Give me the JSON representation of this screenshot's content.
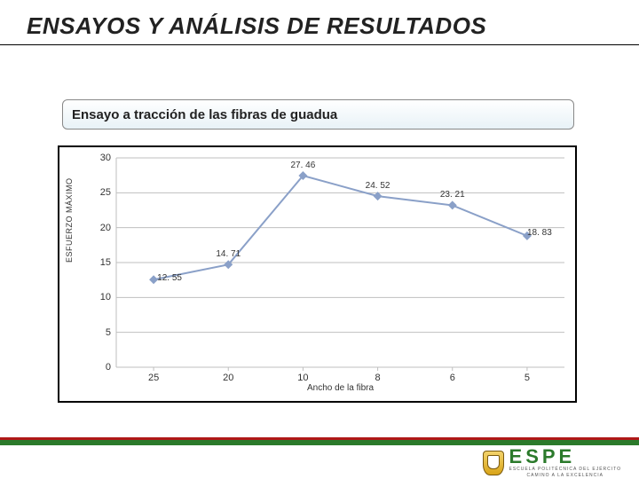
{
  "title": "ENSAYOS Y ANÁLISIS DE RESULTADOS",
  "subtitle": "Ensayo a tracción de las fibras de guadua",
  "chart": {
    "type": "line",
    "x_categories": [
      "25",
      "20",
      "10",
      "8",
      "6",
      "5"
    ],
    "y_values": [
      12.55,
      14.71,
      27.46,
      24.52,
      23.21,
      18.83
    ],
    "data_labels": [
      "12. 55",
      "14. 71",
      "27. 46",
      "24. 52",
      "23. 21",
      "18. 83"
    ],
    "ylim": [
      0,
      30
    ],
    "yticks": [
      0,
      5,
      10,
      15,
      20,
      25,
      30
    ],
    "ytick_labels": [
      "0",
      "5",
      "10",
      "15",
      "20",
      "25",
      "30"
    ],
    "y_axis_title": "ESFUERZO MÁXIMO",
    "x_axis_title": "Ancho de la fibra",
    "line_color": "#8aa0c8",
    "marker_color": "#8aa0c8",
    "marker_shape": "diamond",
    "marker_size": 6,
    "line_width": 2,
    "grid_color": "#bfbfbf",
    "axis_color": "#bfbfbf",
    "background": "#ffffff",
    "title_fontsize_pt": 26,
    "subtitle_fontsize_pt": 15,
    "tick_fontsize_pt": 11,
    "data_label_fontsize_pt": 10,
    "axis_title_fontsize_pt": 10
  },
  "footer": {
    "red_bar_color": "#b01818",
    "green_bar_color": "#2b7a2b",
    "logo_text": "ESPE",
    "logo_sub1": "ESCUELA POLITÉCNICA DEL EJÉRCITO",
    "logo_sub2": "CAMINO A LA EXCELENCIA"
  }
}
